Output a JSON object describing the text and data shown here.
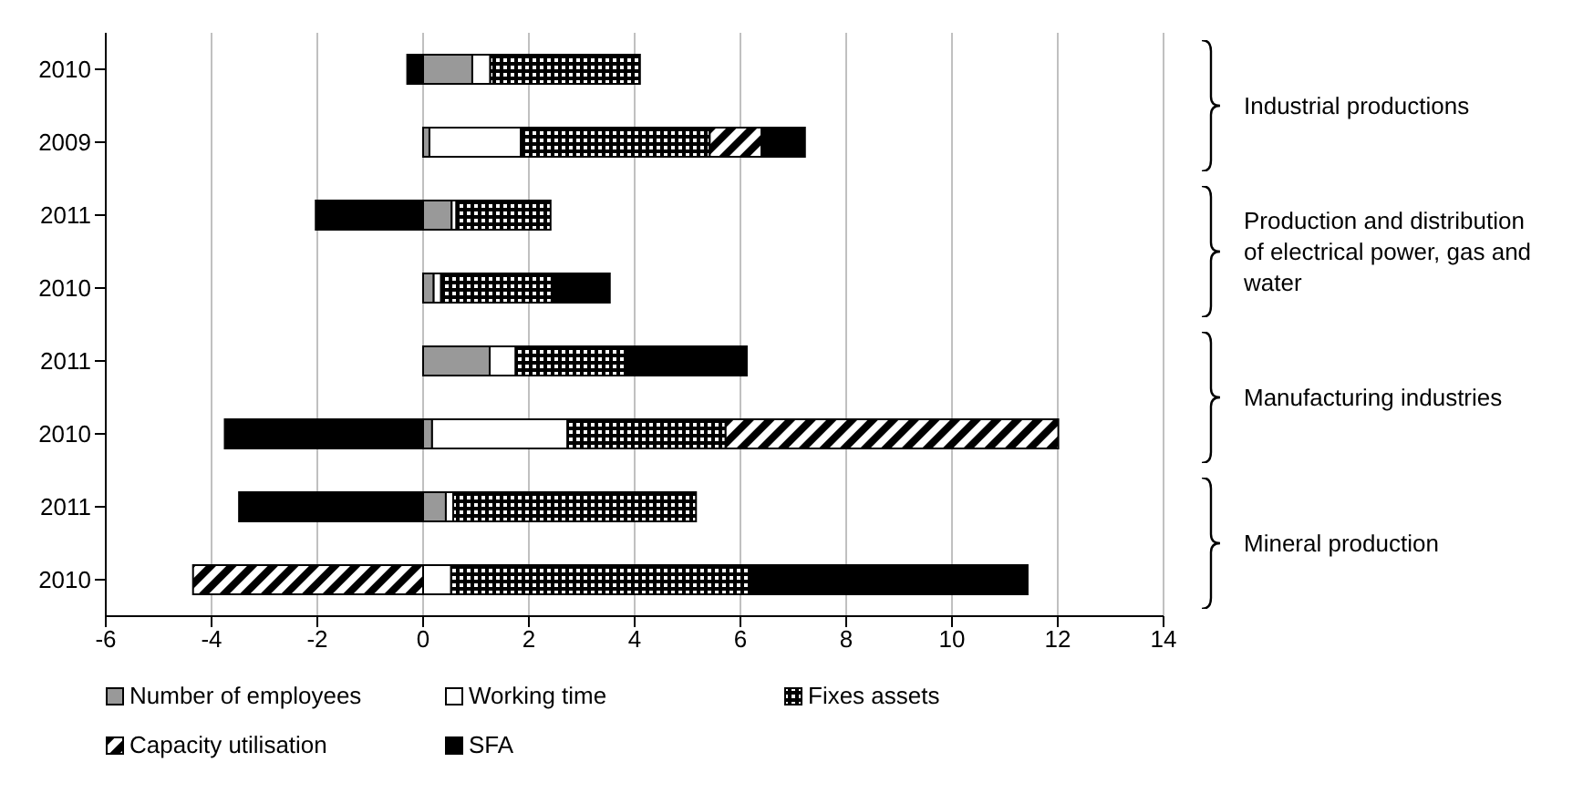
{
  "chart_data": {
    "type": "bar",
    "orientation": "horizontal",
    "stacked": true,
    "categories": [
      "2010",
      "2009",
      "2011",
      "2010",
      "2011",
      "2010",
      "2011",
      "2010"
    ],
    "series": [
      {
        "name": "Number of employees",
        "color": "#999999",
        "values": [
          0.93,
          0.12,
          0.54,
          0.2,
          1.26,
          0.17,
          0.43,
          0
        ]
      },
      {
        "name": "Working time",
        "color": "#ffffff",
        "values": [
          0.34,
          1.73,
          0.09,
          0.14,
          0.49,
          2.56,
          0.14,
          0.53
        ]
      },
      {
        "name": "Fixes assets",
        "color": "#000000",
        "values": [
          2.83,
          3.57,
          1.78,
          2.09,
          2.09,
          2.99,
          4.59,
          5.65
        ]
      },
      {
        "name": "Capacity utilisation",
        "color": "#000000",
        "values": [
          null,
          0.98,
          null,
          null,
          null,
          6.29,
          null,
          -4.35
        ]
      },
      {
        "name": "SFA",
        "color": "#000000",
        "values": [
          -0.3,
          0.82,
          -2.03,
          1.1,
          2.28,
          -3.75,
          -3.48,
          5.25
        ]
      }
    ],
    "xlim": [
      -6,
      14
    ],
    "xticks": [
      -6,
      -4,
      -2,
      0,
      2,
      4,
      6,
      8,
      10,
      12,
      14
    ],
    "grid": "x",
    "legend": "bottom",
    "annotations": [
      "Industrial productions",
      "Production and distribution of electrical power, gas and water",
      "Manufacturing industries",
      "Mineral production"
    ]
  }
}
